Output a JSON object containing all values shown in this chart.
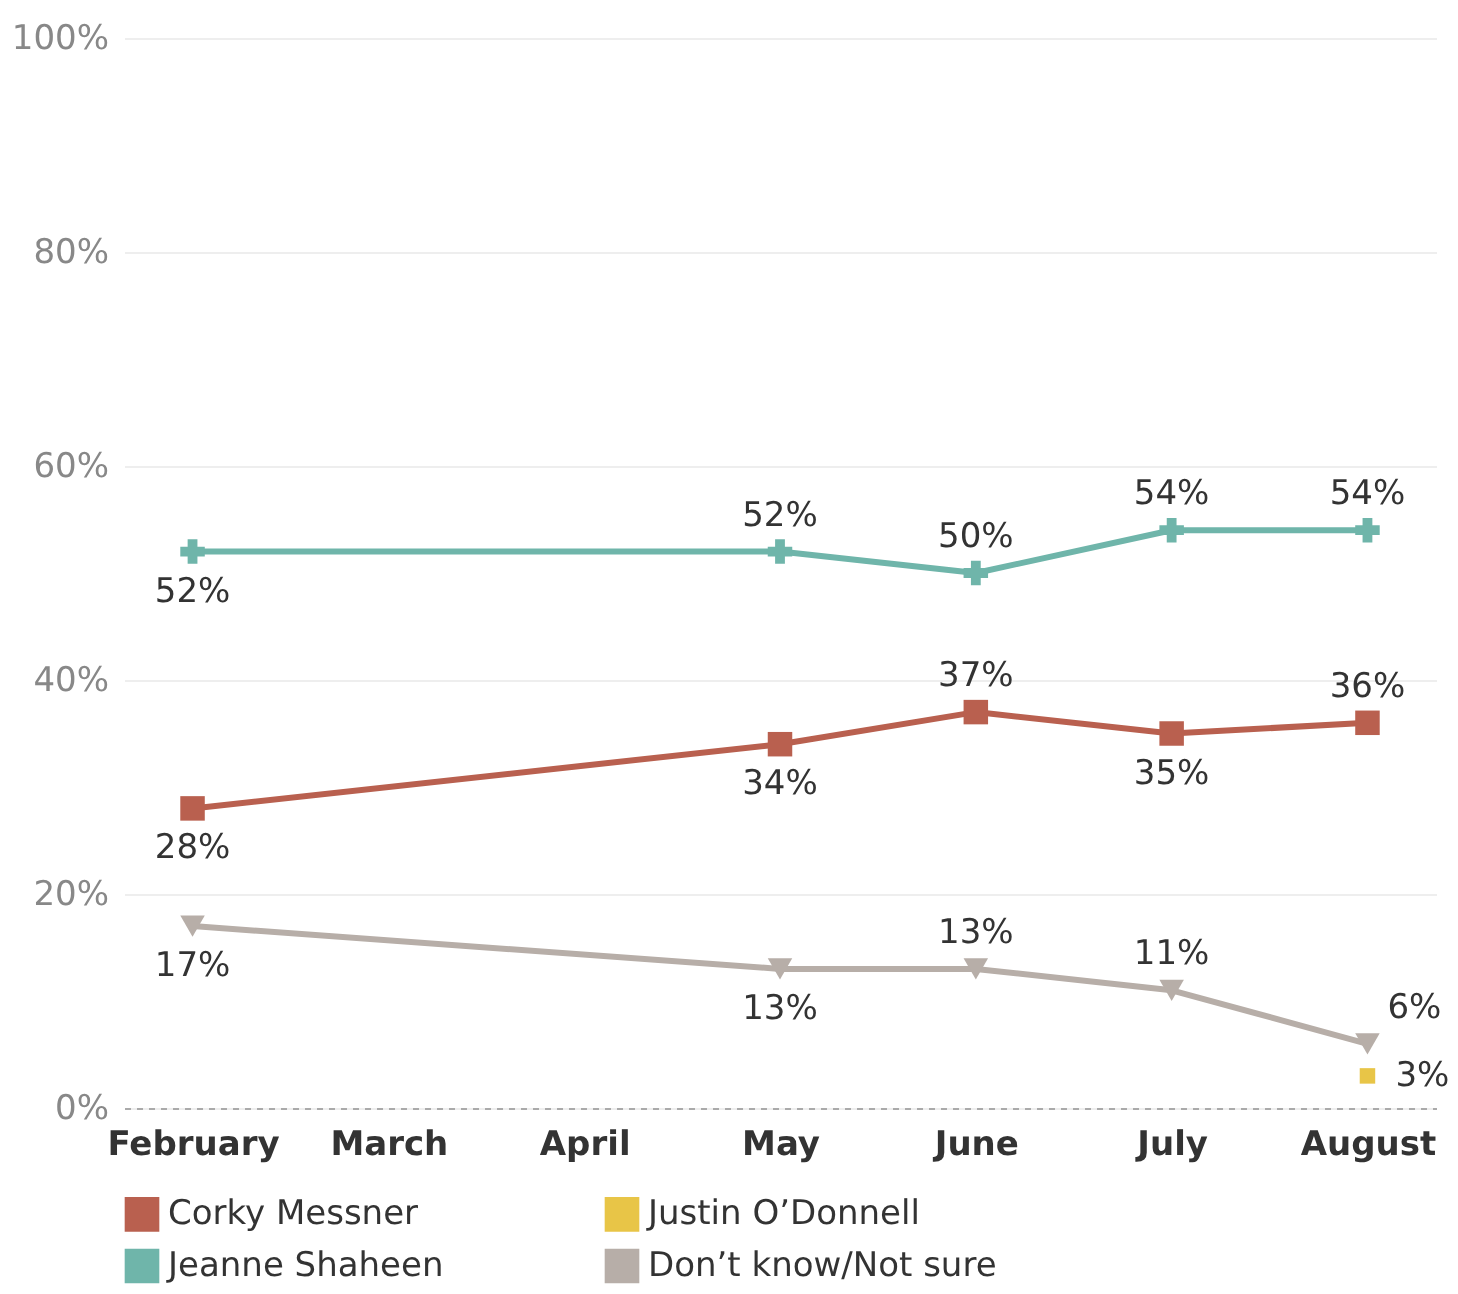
{
  "chart_data": {
    "type": "line",
    "categories": [
      "February",
      "March",
      "April",
      "May",
      "June",
      "July",
      "August"
    ],
    "series": [
      {
        "name": "Corky Messner",
        "color": "#b9604f",
        "marker": "square",
        "values": [
          28,
          null,
          null,
          34,
          37,
          35,
          36
        ],
        "value_labels": [
          "28%",
          null,
          null,
          "34%",
          "37%",
          "35%",
          "36%"
        ]
      },
      {
        "name": "Justin O’Donnell",
        "color": "#e8c547",
        "marker": "square",
        "values": [
          null,
          null,
          null,
          null,
          null,
          null,
          3
        ],
        "value_labels": [
          null,
          null,
          null,
          null,
          null,
          null,
          "3%"
        ]
      },
      {
        "name": "Jeanne Shaheen",
        "color": "#6fb5aa",
        "marker": "cross",
        "values": [
          52,
          null,
          null,
          52,
          50,
          54,
          54
        ],
        "value_labels": [
          "52%",
          null,
          null,
          "52%",
          "50%",
          "54%",
          "54%"
        ]
      },
      {
        "name": "Don’t know/Not sure",
        "color": "#b7aea8",
        "marker": "triangle",
        "values": [
          17,
          null,
          null,
          13,
          13,
          11,
          6
        ],
        "value_labels": [
          "17%",
          null,
          null,
          "13%",
          "13%",
          "11%",
          "6%"
        ]
      }
    ],
    "ylim": [
      0,
      100
    ],
    "yticks": [
      {
        "value": 0,
        "label": "0%"
      },
      {
        "value": 20,
        "label": "20%"
      },
      {
        "value": 40,
        "label": "40%"
      },
      {
        "value": 60,
        "label": "60%"
      },
      {
        "value": 80,
        "label": "80%"
      },
      {
        "value": 100,
        "label": "100%"
      }
    ],
    "grid": "y",
    "legend": "bottom"
  }
}
